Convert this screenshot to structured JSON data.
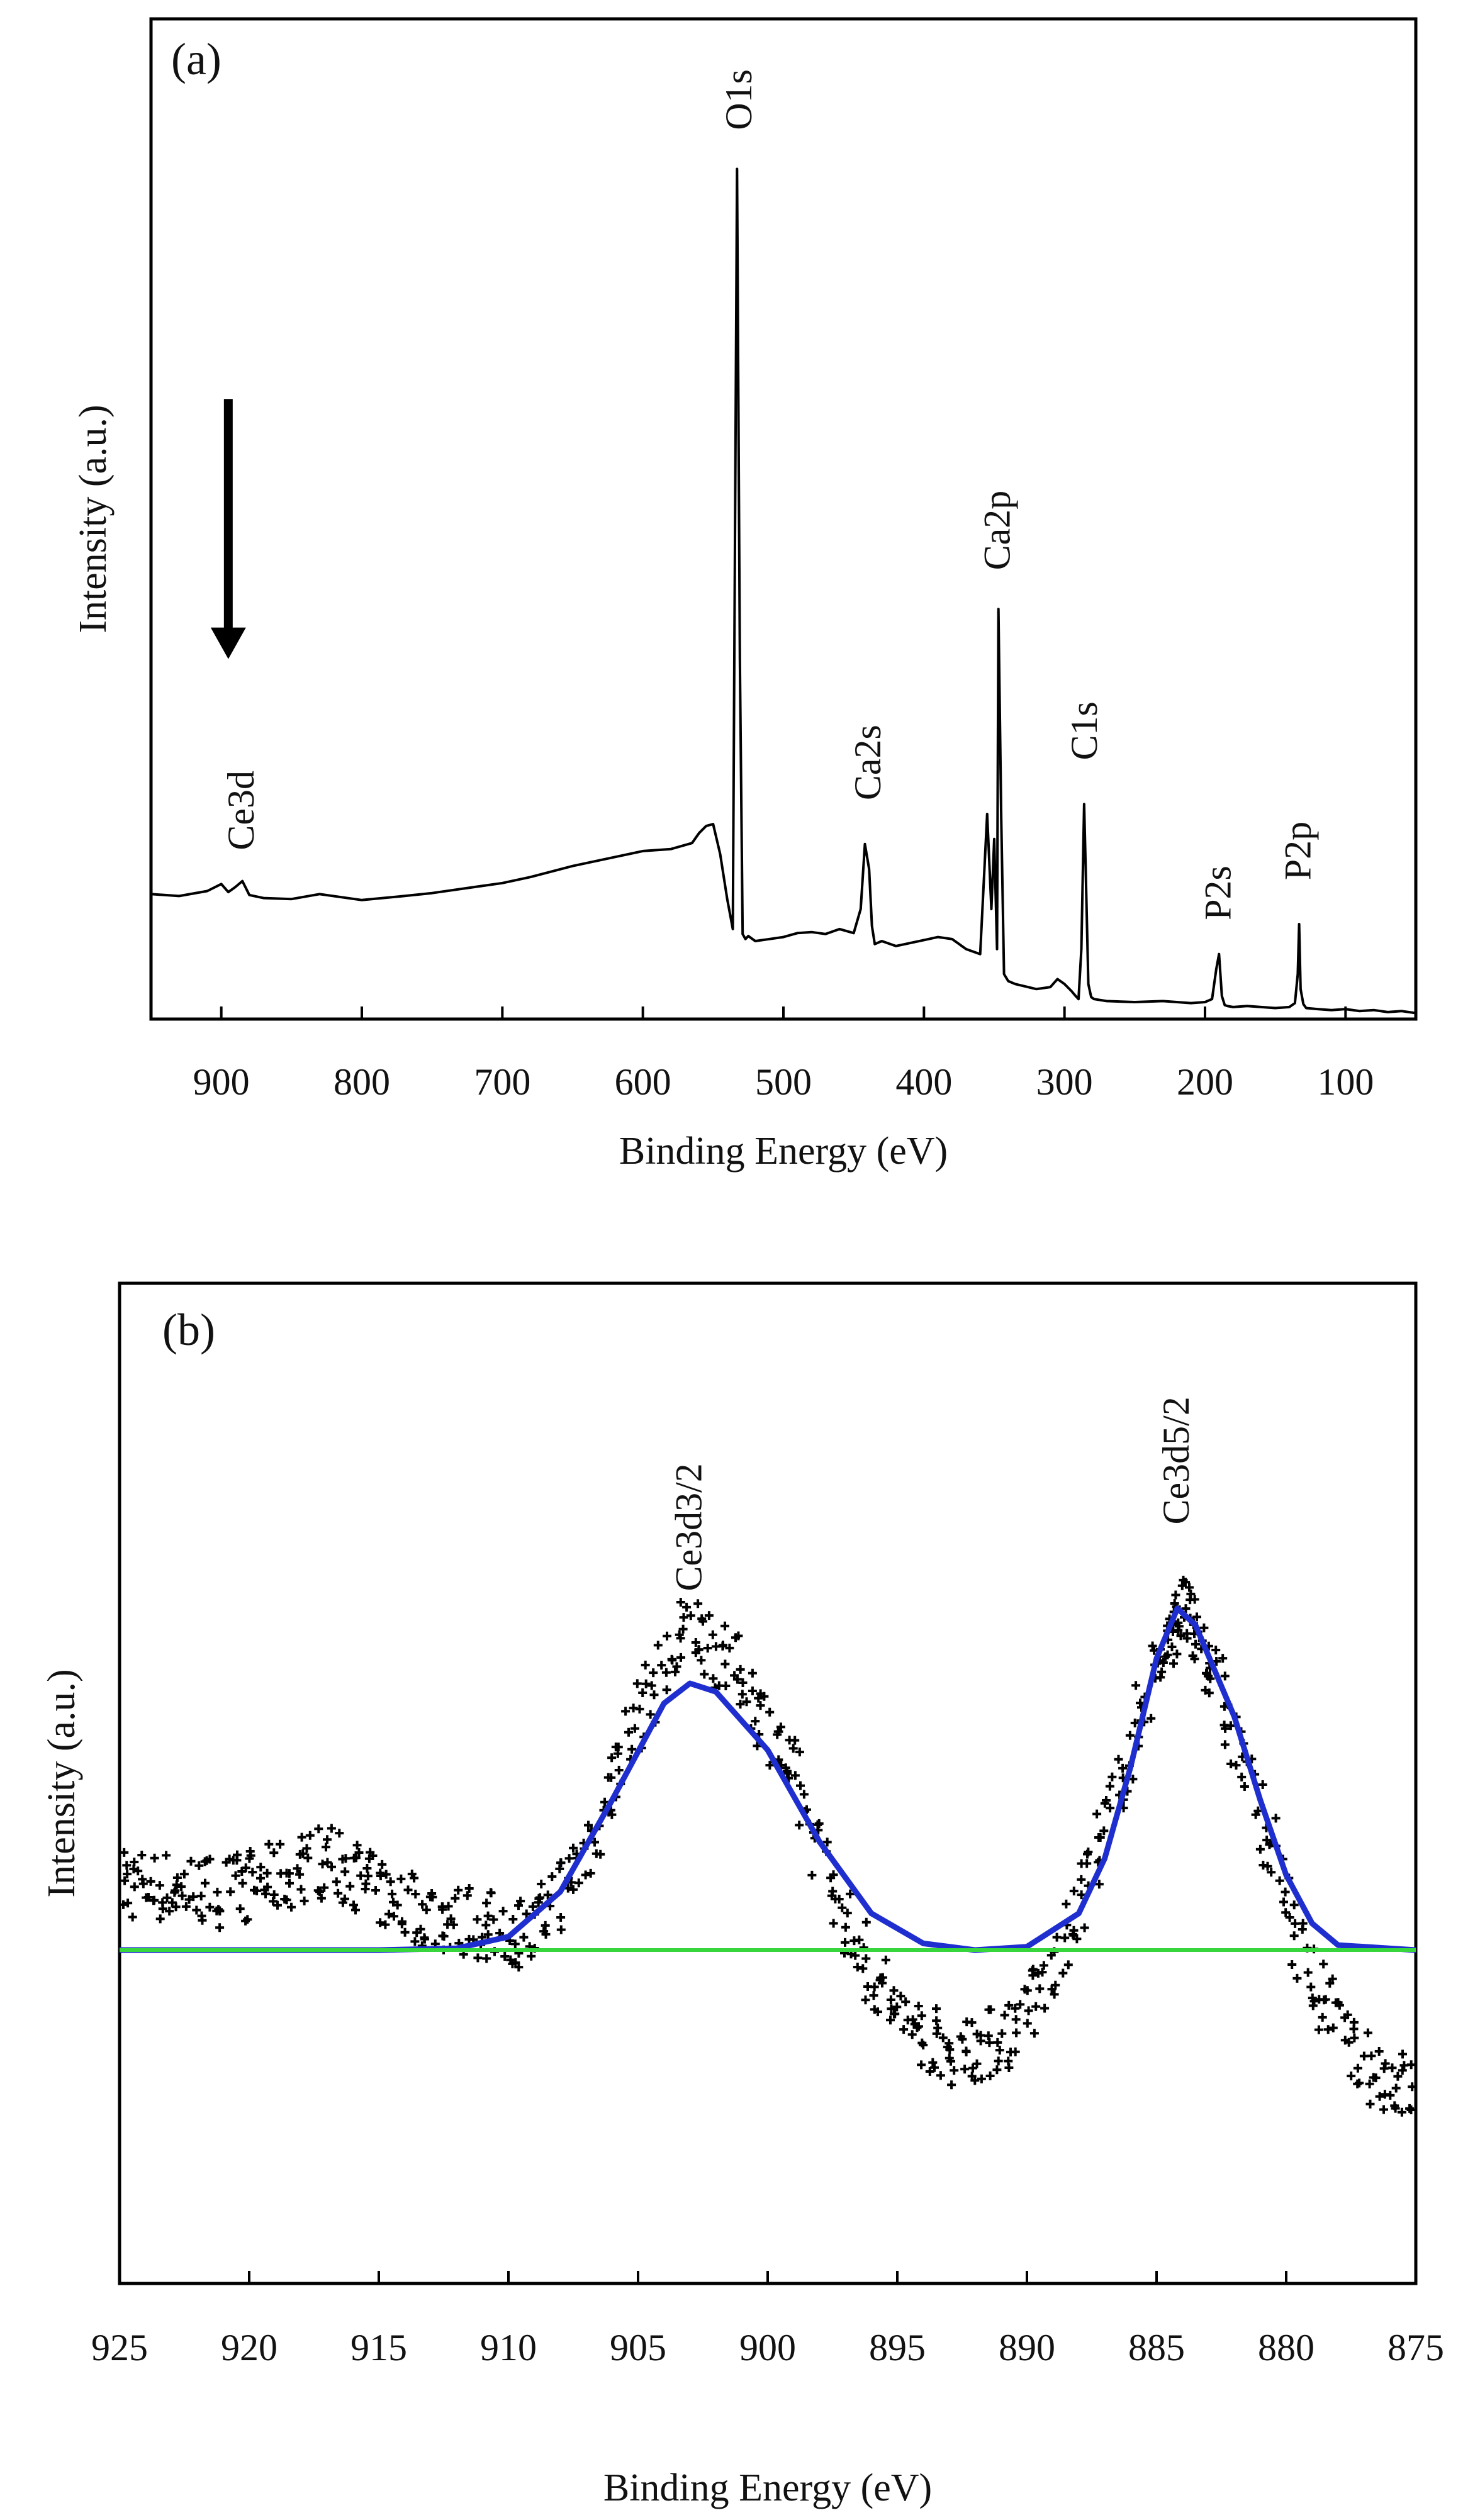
{
  "chart_data": [
    {
      "type": "line",
      "panel_label": "(a)",
      "title": "",
      "xlabel": "Binding Energy (eV)",
      "ylabel": "Intensity (a.u.)",
      "xlim": [
        950,
        50
      ],
      "ylim": [
        0,
        100
      ],
      "x_reversed": true,
      "x_ticks": [
        900,
        800,
        700,
        600,
        500,
        400,
        300,
        200,
        100
      ],
      "y_ticks_shown": false,
      "grid": false,
      "legend": "none",
      "series": [
        {
          "color": "#000000",
          "x": [
            950,
            930,
            910,
            900,
            895,
            890,
            885,
            880,
            870,
            850,
            830,
            800,
            770,
            750,
            720,
            700,
            680,
            650,
            620,
            600,
            580,
            565,
            560,
            555,
            550,
            545,
            540,
            536,
            533,
            531,
            529,
            527,
            525,
            520,
            510,
            500,
            490,
            480,
            470,
            460,
            450,
            445,
            442,
            439,
            437,
            435,
            430,
            420,
            410,
            400,
            390,
            380,
            370,
            360,
            355,
            352,
            350,
            348,
            347,
            345,
            343,
            340,
            335,
            320,
            310,
            305,
            300,
            295,
            292,
            290,
            288,
            286,
            285,
            283,
            281,
            279,
            270,
            250,
            230,
            210,
            200,
            195,
            192,
            190,
            188,
            186,
            184,
            180,
            170,
            160,
            150,
            140,
            136,
            134,
            133,
            132,
            130,
            128,
            120,
            110,
            100,
            90,
            80,
            70,
            60,
            50
          ],
          "y": [
            12.5,
            12.3,
            12.8,
            13.5,
            12.7,
            13.2,
            13.8,
            12.4,
            12.1,
            12.0,
            12.5,
            11.9,
            12.3,
            12.6,
            13.2,
            13.6,
            14.2,
            15.3,
            16.2,
            16.8,
            17.0,
            17.6,
            18.6,
            19.3,
            19.5,
            16.5,
            12.0,
            9.0,
            85.0,
            36.0,
            8.5,
            8.0,
            8.3,
            7.8,
            8.0,
            8.2,
            8.6,
            8.7,
            8.5,
            9.0,
            8.6,
            11.0,
            17.5,
            15.0,
            9.3,
            7.5,
            7.8,
            7.3,
            7.6,
            7.9,
            8.2,
            8.0,
            7.0,
            6.5,
            20.5,
            11.0,
            18.0,
            7.0,
            41.0,
            20.0,
            4.5,
            3.8,
            3.5,
            3.0,
            3.2,
            4.0,
            3.5,
            2.8,
            2.3,
            2.0,
            7.0,
            21.5,
            15.5,
            3.5,
            2.2,
            2.0,
            1.8,
            1.7,
            1.8,
            1.6,
            1.7,
            2.0,
            5.0,
            6.5,
            2.3,
            1.4,
            1.3,
            1.2,
            1.3,
            1.2,
            1.1,
            1.2,
            1.6,
            4.5,
            9.5,
            3.0,
            1.5,
            1.1,
            1.0,
            0.9,
            1.0,
            0.8,
            0.9,
            0.7,
            0.8,
            0.6
          ]
        }
      ],
      "annotations": [
        {
          "text": "O1s",
          "x": 531,
          "y": 88
        },
        {
          "text": "Ca2p",
          "x": 347,
          "y": 44
        },
        {
          "text": "Ca2s",
          "x": 439,
          "y": 21
        },
        {
          "text": "C1s",
          "x": 285,
          "y": 25
        },
        {
          "text": "P2s",
          "x": 190,
          "y": 9
        },
        {
          "text": "P2p",
          "x": 133,
          "y": 13
        },
        {
          "text": "Ce3d",
          "x": 885,
          "y": 16
        }
      ],
      "arrow": {
        "x": 895,
        "y_start": 62,
        "y_end": 36
      }
    },
    {
      "type": "scatter",
      "panel_label": "(b)",
      "title": "",
      "xlabel": "Binding Energy (eV)",
      "ylabel": "Intensity (a.u.)",
      "xlim": [
        925,
        875
      ],
      "ylim": [
        -20,
        40
      ],
      "x_reversed": true,
      "x_ticks": [
        925,
        920,
        915,
        910,
        905,
        900,
        895,
        890,
        885,
        880,
        875
      ],
      "y_ticks_shown": false,
      "grid": false,
      "legend": "none",
      "series": [
        {
          "color": "#000000",
          "marker": "+",
          "x": [
            925,
            923,
            921,
            919,
            917,
            915,
            913,
            911,
            909,
            907,
            905,
            903,
            901,
            899,
            897,
            895,
            893,
            891,
            889,
            887,
            885,
            884,
            883,
            881,
            879,
            877,
            875
          ],
          "y": [
            4.0,
            3.8,
            3.5,
            4.2,
            5.5,
            3.5,
            2.2,
            1.5,
            1.0,
            6.0,
            14.0,
            19.5,
            16.5,
            10.5,
            1.5,
            -4.0,
            -6.0,
            -5.5,
            -1.5,
            7.0,
            17.0,
            20.5,
            17.5,
            8.0,
            -2.0,
            -7.0,
            -8.5
          ],
          "jitter": 2.2
        },
        {
          "color": "#1f2fcf",
          "type": "line",
          "x": [
            925,
            915,
            912,
            910,
            908,
            906,
            904,
            903,
            902,
            900,
            898,
            896,
            894,
            892,
            890,
            888,
            887,
            886,
            885,
            884.2,
            883.5,
            882,
            881,
            880,
            879,
            878,
            875
          ],
          "y": [
            0,
            0,
            0.1,
            0.8,
            3.5,
            9.0,
            14.8,
            16.0,
            15.5,
            12.0,
            6.5,
            2.2,
            0.4,
            0,
            0.2,
            2.2,
            5.5,
            11.0,
            17.5,
            20.5,
            19.5,
            14.0,
            9.0,
            4.5,
            1.6,
            0.3,
            0
          ]
        },
        {
          "color": "#36d63c",
          "type": "line",
          "x": [
            925,
            875
          ],
          "y": [
            0,
            0
          ]
        }
      ],
      "annotations": [
        {
          "text": "Ce3d3/2",
          "x": 903,
          "y": 21
        },
        {
          "text": "Ce3d5/2",
          "x": 884.2,
          "y": 25
        }
      ]
    }
  ]
}
